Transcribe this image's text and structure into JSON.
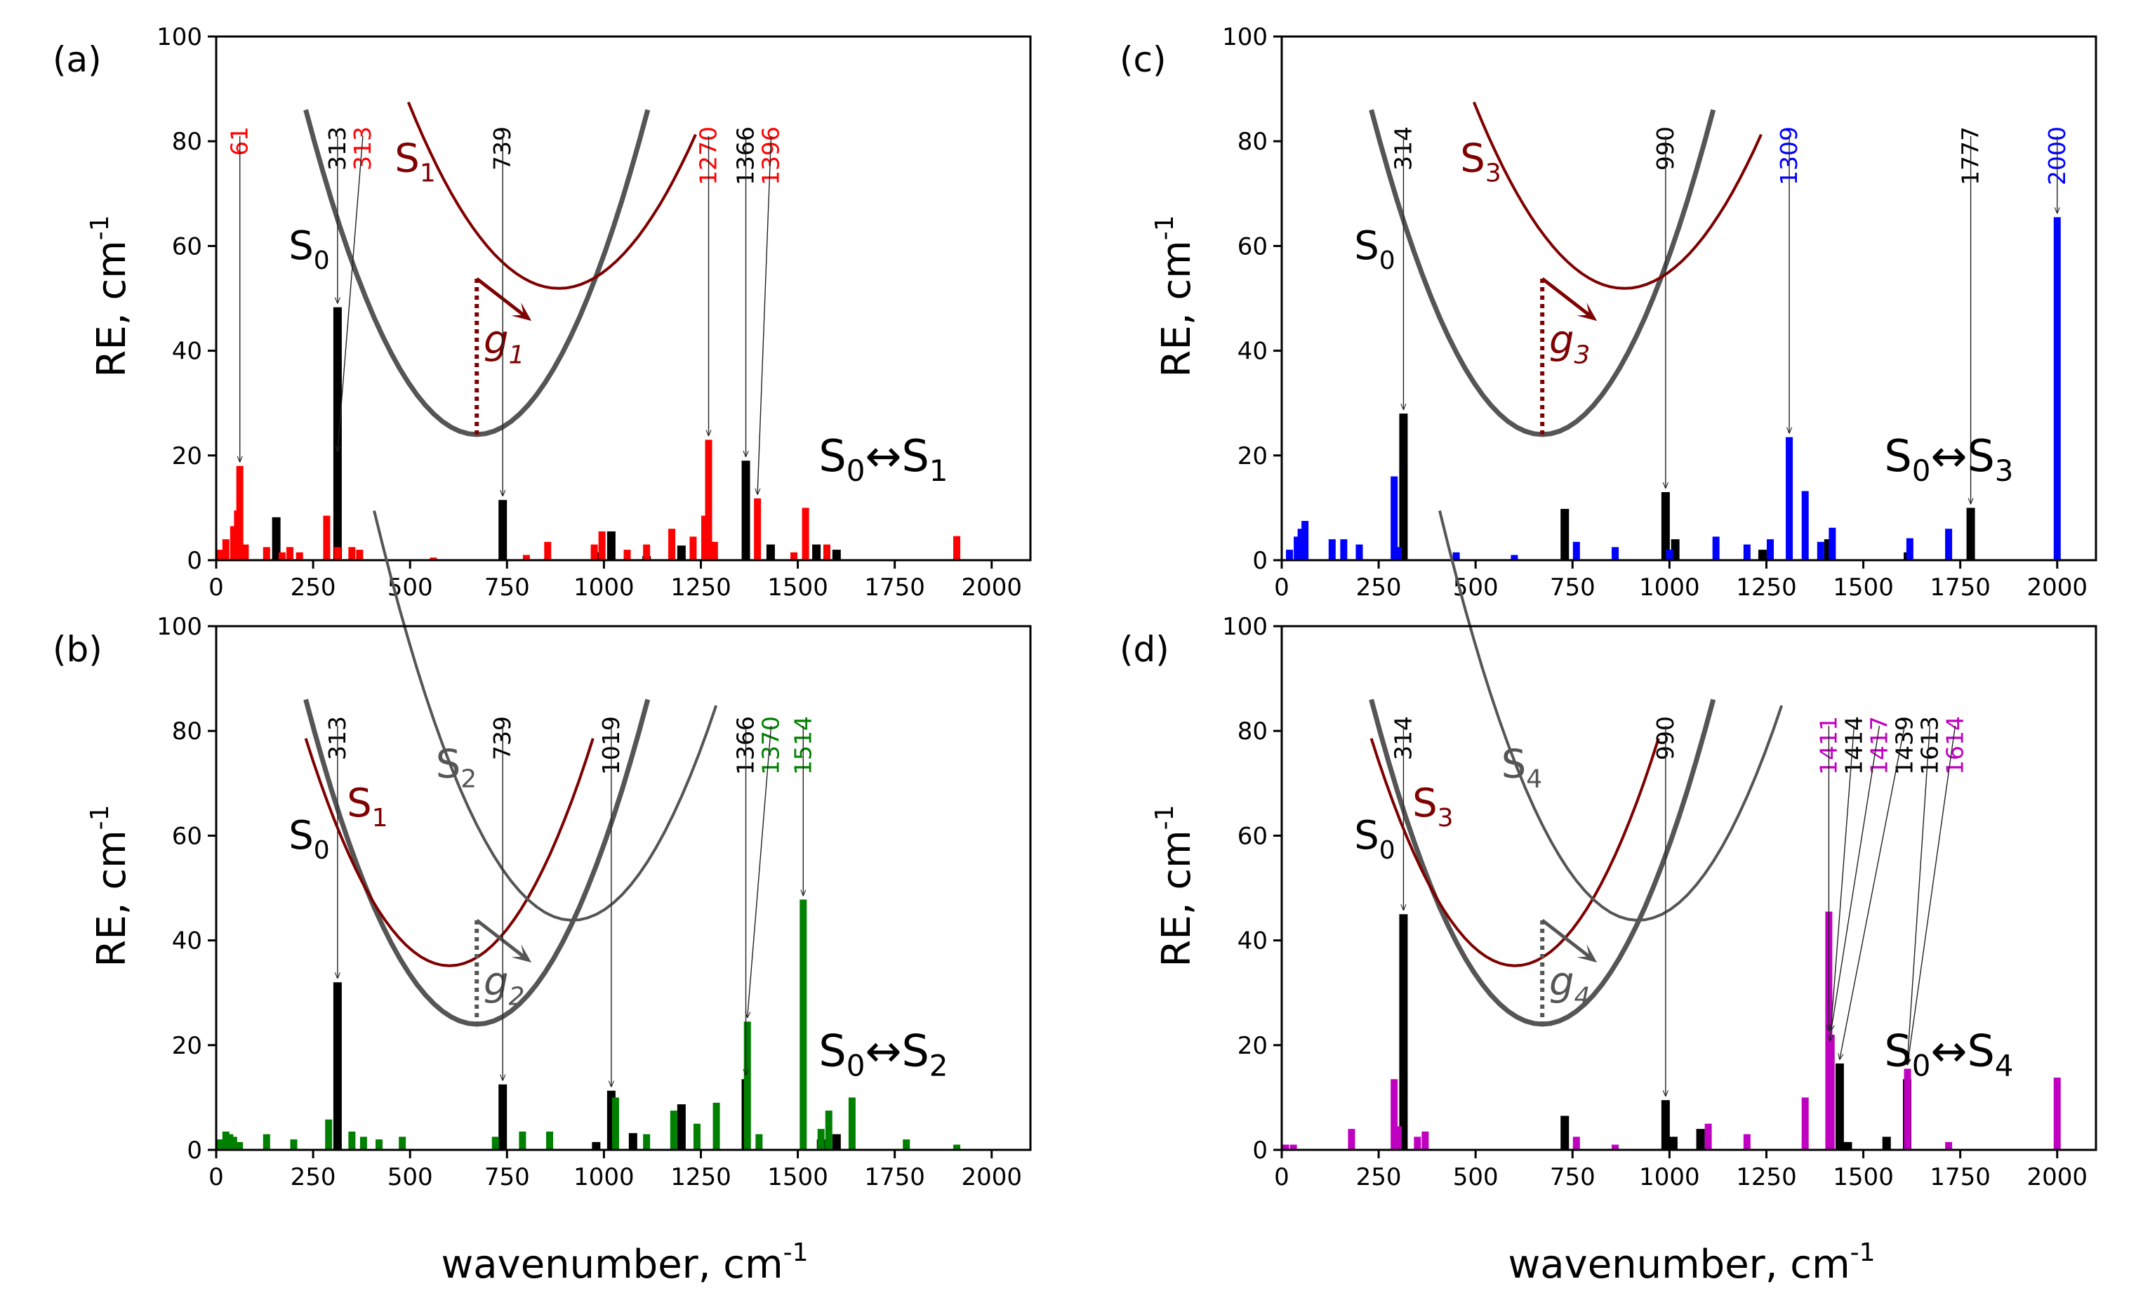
{
  "figure": {
    "xlabel": "wavenumber, cm",
    "xlabel_sup": "-1",
    "ylabel": "RE, cm",
    "ylabel_sup": "-1"
  },
  "chart_data": [
    {
      "panel": "(a)",
      "type": "bar",
      "transition": {
        "from": "S",
        "from_sub": "0",
        "arrow": "↔",
        "to": "S",
        "to_sub": "1"
      },
      "xlim": [
        0,
        2100
      ],
      "ylim": [
        0,
        100
      ],
      "xticks": [
        0,
        250,
        500,
        750,
        1000,
        1250,
        1500,
        1750,
        2000
      ],
      "yticks": [
        0,
        20,
        40,
        60,
        80,
        100
      ],
      "colors": {
        "black": "#000000",
        "excited": "#ff0000"
      },
      "series": [
        {
          "name": "S0",
          "color": "#000000",
          "x": [
            155,
            313,
            739,
            980,
            1019,
            1110,
            1200,
            1366,
            1430,
            1548,
            1600
          ],
          "y": [
            8.2,
            48.3,
            11.5,
            1.5,
            5.5,
            0.8,
            2.8,
            19.0,
            3.0,
            3.0,
            2.0
          ]
        },
        {
          "name": "S1",
          "color": "#ff0000",
          "x": [
            10,
            25,
            45,
            55,
            61,
            75,
            130,
            170,
            190,
            215,
            285,
            313,
            350,
            370,
            560,
            800,
            855,
            975,
            995,
            1060,
            1110,
            1175,
            1230,
            1260,
            1270,
            1285,
            1396,
            1490,
            1520,
            1575,
            1910
          ],
          "y": [
            2.0,
            4.0,
            6.5,
            9.5,
            18.0,
            3.0,
            2.5,
            1.5,
            2.5,
            1.5,
            8.5,
            2.5,
            2.5,
            2.0,
            0.5,
            1.0,
            3.5,
            3.0,
            5.5,
            2.0,
            3.0,
            6.0,
            4.5,
            8.5,
            23.0,
            3.5,
            11.8,
            1.5,
            10.0,
            3.0,
            4.6
          ]
        }
      ],
      "annotations": [
        {
          "label": "61",
          "color": "#ff0000",
          "x": 61,
          "y": 18.0
        },
        {
          "label": "313",
          "color": "#000000",
          "x": 313,
          "y": 48.3
        },
        {
          "label": "313",
          "color": "#ff0000",
          "x": 313,
          "y": 20.0
        },
        {
          "label": "739",
          "color": "#000000",
          "x": 739,
          "y": 11.5
        },
        {
          "label": "1270",
          "color": "#ff0000",
          "x": 1270,
          "y": 23.0
        },
        {
          "label": "1366",
          "color": "#000000",
          "x": 1366,
          "y": 19.0
        },
        {
          "label": "1396",
          "color": "#ff0000",
          "x": 1396,
          "y": 11.8
        }
      ],
      "inset": {
        "ground": {
          "label": "S",
          "sub": "0"
        },
        "excited": {
          "label": "S",
          "sub": "1",
          "color": "#7f0000"
        },
        "gradient": {
          "label": "g",
          "sub": "1",
          "color": "#7f0000"
        }
      }
    },
    {
      "panel": "(b)",
      "type": "bar",
      "transition": {
        "from": "S",
        "from_sub": "0",
        "arrow": "↔",
        "to": "S",
        "to_sub": "2"
      },
      "xlim": [
        0,
        2100
      ],
      "ylim": [
        0,
        100
      ],
      "xticks": [
        0,
        250,
        500,
        750,
        1000,
        1250,
        1500,
        1750,
        2000
      ],
      "yticks": [
        0,
        20,
        40,
        60,
        80,
        100
      ],
      "colors": {
        "black": "#000000",
        "excited": "#008000"
      },
      "series": [
        {
          "name": "S0",
          "color": "#000000",
          "x": [
            313,
            739,
            980,
            1019,
            1075,
            1200,
            1366,
            1560,
            1600
          ],
          "y": [
            32.0,
            12.5,
            1.5,
            11.3,
            3.2,
            8.7,
            13.5,
            2.0,
            3.0
          ]
        },
        {
          "name": "S2",
          "color": "#008000",
          "x": [
            10,
            25,
            35,
            45,
            60,
            130,
            200,
            290,
            350,
            380,
            420,
            480,
            720,
            790,
            860,
            1030,
            1110,
            1180,
            1240,
            1290,
            1370,
            1400,
            1514,
            1560,
            1580,
            1640,
            1780,
            1910
          ],
          "y": [
            2.0,
            3.5,
            3.0,
            2.5,
            1.5,
            3.0,
            2.0,
            5.8,
            3.5,
            2.5,
            2.0,
            2.5,
            2.5,
            3.5,
            3.5,
            10.0,
            3.0,
            7.5,
            5.0,
            9.0,
            24.5,
            3.0,
            47.8,
            4.0,
            7.5,
            10.0,
            2.0,
            1.0
          ]
        }
      ],
      "annotations": [
        {
          "label": "313",
          "color": "#000000",
          "x": 313,
          "y": 32.0
        },
        {
          "label": "739",
          "color": "#000000",
          "x": 739,
          "y": 12.5
        },
        {
          "label": "1019",
          "color": "#000000",
          "x": 1019,
          "y": 11.3
        },
        {
          "label": "1366",
          "color": "#000000",
          "x": 1366,
          "y": 13.5
        },
        {
          "label": "1370",
          "color": "#008000",
          "x": 1370,
          "y": 24.5
        },
        {
          "label": "1514",
          "color": "#008000",
          "x": 1514,
          "y": 47.8
        }
      ],
      "inset": {
        "ground": {
          "label": "S",
          "sub": "0"
        },
        "excited": {
          "label": "S",
          "sub": "1",
          "color": "#7f0000"
        },
        "excited2": {
          "label": "S",
          "sub": "2",
          "color": "#555555"
        },
        "gradient": {
          "label": "g",
          "sub": "2",
          "color": "#555555"
        }
      }
    },
    {
      "panel": "(c)",
      "type": "bar",
      "transition": {
        "from": "S",
        "from_sub": "0",
        "arrow": "↔",
        "to": "S",
        "to_sub": "3"
      },
      "xlim": [
        0,
        2100
      ],
      "ylim": [
        0,
        100
      ],
      "xticks": [
        0,
        250,
        500,
        750,
        1000,
        1250,
        1500,
        1750,
        2000
      ],
      "yticks": [
        0,
        20,
        40,
        60,
        80,
        100
      ],
      "colors": {
        "black": "#000000",
        "excited": "#0000ff"
      },
      "series": [
        {
          "name": "S0",
          "color": "#000000",
          "x": [
            314,
            730,
            990,
            1015,
            1240,
            1410,
            1615,
            1777
          ],
          "y": [
            28.0,
            9.8,
            13.0,
            4.0,
            2.0,
            4.0,
            1.5,
            10.0
          ]
        },
        {
          "name": "S3",
          "color": "#0000ff",
          "x": [
            20,
            40,
            50,
            60,
            130,
            160,
            200,
            290,
            300,
            450,
            600,
            760,
            860,
            1000,
            1120,
            1200,
            1260,
            1309,
            1350,
            1390,
            1420,
            1620,
            1720,
            2000
          ],
          "y": [
            2.0,
            4.5,
            6.0,
            7.5,
            4.0,
            4.0,
            3.0,
            16.0,
            2.5,
            1.5,
            1.0,
            3.5,
            2.5,
            2.0,
            4.5,
            3.0,
            4.0,
            23.5,
            13.2,
            3.5,
            6.2,
            4.2,
            6.0,
            65.5
          ]
        }
      ],
      "annotations": [
        {
          "label": "314",
          "color": "#000000",
          "x": 314,
          "y": 28.0
        },
        {
          "label": "990",
          "color": "#000000",
          "x": 990,
          "y": 13.0
        },
        {
          "label": "1309",
          "color": "#0000ff",
          "x": 1309,
          "y": 23.5
        },
        {
          "label": "1777",
          "color": "#000000",
          "x": 1777,
          "y": 10.0
        },
        {
          "label": "2000",
          "color": "#0000ff",
          "x": 2000,
          "y": 65.5
        }
      ],
      "inset": {
        "ground": {
          "label": "S",
          "sub": "0"
        },
        "excited": {
          "label": "S",
          "sub": "3",
          "color": "#7f0000"
        },
        "gradient": {
          "label": "g",
          "sub": "3",
          "color": "#7f0000"
        }
      }
    },
    {
      "panel": "(d)",
      "type": "bar",
      "transition": {
        "from": "S",
        "from_sub": "0",
        "arrow": "↔",
        "to": "S",
        "to_sub": "4"
      },
      "xlim": [
        0,
        2100
      ],
      "ylim": [
        0,
        100
      ],
      "xticks": [
        0,
        250,
        500,
        750,
        1000,
        1250,
        1500,
        1750,
        2000
      ],
      "yticks": [
        0,
        20,
        40,
        60,
        80,
        100
      ],
      "colors": {
        "black": "#000000",
        "excited": "#c000c0"
      },
      "series": [
        {
          "name": "S0",
          "color": "#000000",
          "x": [
            314,
            730,
            990,
            1010,
            1080,
            1414,
            1439,
            1460,
            1560,
            1613
          ],
          "y": [
            45.0,
            6.5,
            9.5,
            2.5,
            4.0,
            17.0,
            16.5,
            1.5,
            2.5,
            13.5
          ]
        },
        {
          "name": "S4",
          "color": "#c000c0",
          "x": [
            10,
            30,
            180,
            290,
            300,
            350,
            370,
            760,
            860,
            1100,
            1200,
            1350,
            1411,
            1417,
            1614,
            1720,
            2000
          ],
          "y": [
            1.0,
            1.0,
            4.0,
            13.5,
            4.5,
            2.5,
            3.5,
            2.5,
            1.0,
            5.0,
            3.0,
            10.0,
            45.5,
            22.0,
            15.5,
            1.5,
            13.8
          ]
        }
      ],
      "annotations": [
        {
          "label": "314",
          "color": "#000000",
          "x": 314,
          "y": 45.0
        },
        {
          "label": "990",
          "color": "#000000",
          "x": 990,
          "y": 9.5
        },
        {
          "label": "1411",
          "color": "#c000c0",
          "x": 1411,
          "y": 22.0
        },
        {
          "label": "1414",
          "color": "#000000",
          "x": 1414,
          "y": 20.0
        },
        {
          "label": "1417",
          "color": "#c000c0",
          "x": 1417,
          "y": 22.0
        },
        {
          "label": "1439",
          "color": "#000000",
          "x": 1439,
          "y": 16.5
        },
        {
          "label": "1613",
          "color": "#000000",
          "x": 1613,
          "y": 15.5
        },
        {
          "label": "1614",
          "color": "#c000c0",
          "x": 1614,
          "y": 15.5
        }
      ],
      "inset": {
        "ground": {
          "label": "S",
          "sub": "0"
        },
        "excited": {
          "label": "S",
          "sub": "3",
          "color": "#7f0000"
        },
        "excited2": {
          "label": "S",
          "sub": "4",
          "color": "#555555"
        },
        "gradient": {
          "label": "g",
          "sub": "4",
          "color": "#555555"
        }
      }
    }
  ]
}
